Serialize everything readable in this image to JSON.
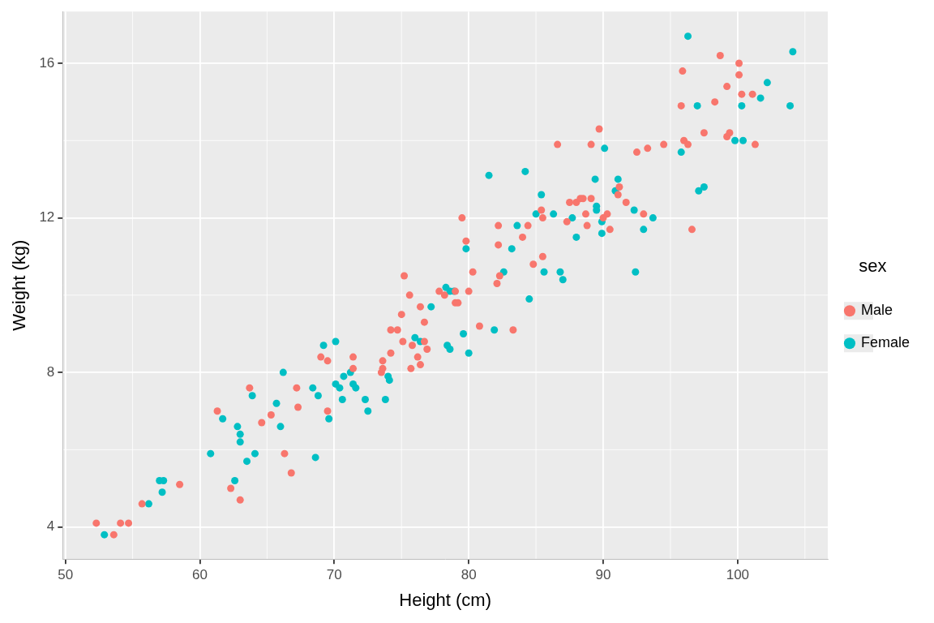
{
  "chart_data": {
    "type": "scatter",
    "x_label": "Height (cm)",
    "y_label": "Weight (kg)",
    "legend_title": "sex",
    "legend": "right",
    "grid": true,
    "xlim": [
      49.8,
      106.7
    ],
    "xticks": [
      50,
      60,
      70,
      80,
      90,
      100
    ],
    "ylim": [
      3.17,
      17.34
    ],
    "yticks": [
      4,
      8,
      12,
      16
    ],
    "series": [
      {
        "name": "Male",
        "color": "#F8766D",
        "marker": "circle",
        "x": [
          52.3,
          53.6,
          54.1,
          54.7,
          55.7,
          58.5,
          61.3,
          62.3,
          63.0,
          63.7,
          64.6,
          65.3,
          66.3,
          66.8,
          67.2,
          67.3,
          69.0,
          69.5,
          69.5,
          71.4,
          71.4,
          73.5,
          73.6,
          73.6,
          74.2,
          74.2,
          74.7,
          75.0,
          75.1,
          75.2,
          75.6,
          75.7,
          75.8,
          76.2,
          76.4,
          76.4,
          76.7,
          76.7,
          76.9,
          77.8,
          78.2,
          79.0,
          79.2,
          79.0,
          79.5,
          79.8,
          80.0,
          80.3,
          80.8,
          82.1,
          82.2,
          82.2,
          82.3,
          83.3,
          84.0,
          84.4,
          84.8,
          85.4,
          85.5,
          85.5,
          86.6,
          87.3,
          87.5,
          88.0,
          88.3,
          88.5,
          88.7,
          88.8,
          89.1,
          89.1,
          89.7,
          90.0,
          90.3,
          90.5,
          91.1,
          91.2,
          91.7,
          92.5,
          93.0,
          93.3,
          94.5,
          95.8,
          95.9,
          96.0,
          96.3,
          96.6,
          97.5,
          98.3,
          98.7,
          99.2,
          99.2,
          99.4,
          100.1,
          100.1,
          100.3,
          101.1,
          101.3
        ],
        "values": [
          4.1,
          3.8,
          4.1,
          4.1,
          4.6,
          5.1,
          7.0,
          5.0,
          4.7,
          7.6,
          6.7,
          6.9,
          5.9,
          5.4,
          7.6,
          7.1,
          8.4,
          8.3,
          7.0,
          8.4,
          8.1,
          8.0,
          8.3,
          8.1,
          8.5,
          9.1,
          9.1,
          9.5,
          8.8,
          10.5,
          10.0,
          8.1,
          8.7,
          8.4,
          8.2,
          9.7,
          9.3,
          8.8,
          8.6,
          10.1,
          10.0,
          9.8,
          9.8,
          10.1,
          12.0,
          11.4,
          10.1,
          10.6,
          9.2,
          10.3,
          11.8,
          11.3,
          10.5,
          9.1,
          11.5,
          11.8,
          10.8,
          12.2,
          11.0,
          12.0,
          13.9,
          11.9,
          12.4,
          12.4,
          12.5,
          12.5,
          12.1,
          11.8,
          12.5,
          13.9,
          14.3,
          12.0,
          12.1,
          11.7,
          12.6,
          12.8,
          12.4,
          13.7,
          12.1,
          13.8,
          13.9,
          14.9,
          15.8,
          14.0,
          13.9,
          11.7,
          14.2,
          15.0,
          16.2,
          15.4,
          14.1,
          14.2,
          16.0,
          15.7,
          15.2,
          15.2,
          13.9
        ]
      },
      {
        "name": "Female",
        "color": "#00BFC4",
        "marker": "circle",
        "x": [
          52.9,
          56.2,
          57.0,
          57.3,
          57.2,
          60.8,
          61.7,
          62.6,
          62.8,
          63.0,
          63.0,
          63.5,
          63.9,
          64.1,
          65.7,
          66.0,
          66.2,
          68.4,
          68.6,
          68.8,
          69.2,
          69.6,
          70.1,
          70.1,
          70.4,
          70.6,
          70.7,
          71.2,
          71.4,
          71.6,
          72.3,
          72.5,
          73.8,
          74.0,
          74.1,
          76.0,
          76.4,
          77.2,
          78.3,
          78.4,
          78.6,
          78.6,
          78.9,
          79.6,
          79.8,
          80.0,
          81.5,
          81.9,
          82.6,
          83.2,
          83.6,
          84.2,
          84.5,
          85.0,
          85.4,
          85.6,
          86.3,
          86.8,
          87.0,
          87.7,
          88.0,
          89.4,
          89.5,
          89.5,
          89.9,
          89.9,
          90.1,
          90.9,
          91.1,
          92.3,
          92.4,
          93.0,
          93.7,
          95.8,
          96.3,
          97.0,
          97.1,
          97.5,
          99.8,
          100.3,
          100.4,
          101.7,
          102.2,
          103.9,
          104.1
        ],
        "values": [
          3.8,
          4.6,
          5.2,
          5.2,
          4.9,
          5.9,
          6.8,
          5.2,
          6.6,
          6.4,
          6.2,
          5.7,
          7.4,
          5.9,
          7.2,
          6.6,
          8.0,
          7.6,
          5.8,
          7.4,
          8.7,
          6.8,
          8.8,
          7.7,
          7.6,
          7.3,
          7.9,
          8.0,
          7.7,
          7.6,
          7.3,
          7.0,
          7.3,
          7.9,
          7.8,
          8.9,
          8.8,
          9.7,
          10.2,
          8.7,
          8.6,
          10.1,
          10.1,
          9.0,
          11.2,
          8.5,
          13.1,
          9.1,
          10.6,
          11.2,
          11.8,
          13.2,
          9.9,
          12.1,
          12.6,
          10.6,
          12.1,
          10.6,
          10.4,
          12.0,
          11.5,
          13.0,
          12.3,
          12.2,
          11.6,
          11.9,
          13.8,
          12.7,
          13.0,
          12.2,
          10.6,
          11.7,
          12.0,
          13.7,
          16.7,
          14.9,
          12.7,
          12.8,
          14.0,
          14.9,
          14.0,
          15.1,
          15.5,
          14.9,
          16.3
        ]
      }
    ]
  }
}
